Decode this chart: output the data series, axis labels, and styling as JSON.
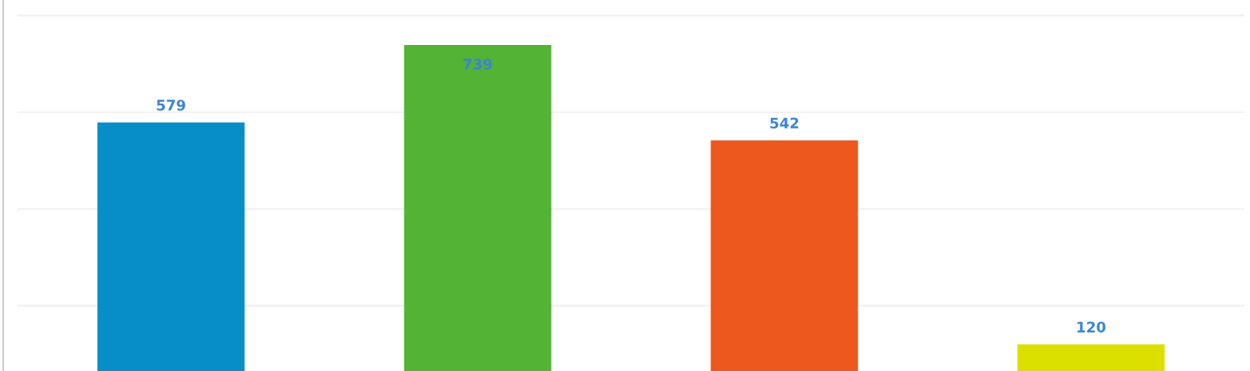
{
  "chart_data": {
    "type": "bar",
    "categories": [
      null,
      null,
      null,
      null
    ],
    "values": [
      579,
      739,
      542,
      120
    ],
    "colors": [
      "#078ec8",
      "#52b335",
      "#ec581d",
      "#dce000"
    ],
    "yticks": [
      200,
      400,
      600,
      800
    ],
    "grid": "y",
    "tick_labels": false,
    "data_labels": true
  }
}
